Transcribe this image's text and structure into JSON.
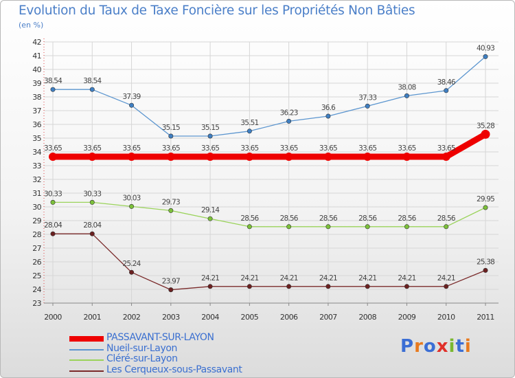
{
  "title": "Evolution du Taux de Taxe Foncière sur les Propriétés Non Bâties",
  "unit": "(en %)",
  "logo": {
    "text": "Proxiti",
    "colors": [
      "#3b6ed4",
      "#e87a1e",
      "#3b6ed4",
      "#e0302a",
      "#7ab830",
      "#3b6ed4",
      "#e87a1e"
    ]
  },
  "chart_data": {
    "type": "line",
    "title": "Evolution du Taux de Taxe Foncière sur les Propriétés Non Bâties",
    "ylabel": "(en %)",
    "xlabel": "",
    "categories": [
      "2000",
      "2001",
      "2002",
      "2003",
      "2004",
      "2005",
      "2006",
      "2007",
      "2008",
      "2009",
      "2010",
      "2011"
    ],
    "ylim": [
      23,
      42
    ],
    "yticks": [
      "23",
      "24",
      "25",
      "26",
      "27",
      "28",
      "29",
      "30",
      "31",
      "32",
      "33",
      "34",
      "35",
      "36",
      "37",
      "38",
      "39",
      "40",
      "41",
      "42"
    ],
    "grid": true,
    "legend_position": "bottom-left",
    "series": [
      {
        "name": "Nueil-sur-Layon",
        "color": "#5b95cf",
        "point_color": "#3f7fc2",
        "values": [
          38.54,
          38.54,
          37.39,
          35.15,
          35.15,
          35.51,
          36.23,
          36.6,
          37.33,
          38.08,
          38.46,
          40.93
        ],
        "labels": [
          "38.54",
          "38.54",
          "37.39",
          "35.15",
          "35.15",
          "35.51",
          "36.23",
          "36.6",
          "37.33",
          "38.08",
          "38.46",
          "40.93"
        ]
      },
      {
        "name": "Cléré-sur-Layon",
        "color": "#9ad35a",
        "point_color": "#7cc13a",
        "values": [
          30.33,
          30.33,
          30.03,
          29.73,
          29.14,
          28.56,
          28.56,
          28.56,
          28.56,
          28.56,
          28.56,
          29.95
        ],
        "labels": [
          "30.33",
          "30.33",
          "30.03",
          "29.73",
          "29.14",
          "28.56",
          "28.56",
          "28.56",
          "28.56",
          "28.56",
          "28.56",
          "29.95"
        ]
      },
      {
        "name": "Les Cerqueux-sous-Passavant",
        "color": "#7a2a2a",
        "point_color": "#6b2020",
        "values": [
          28.04,
          28.04,
          25.24,
          23.97,
          24.21,
          24.21,
          24.21,
          24.21,
          24.21,
          24.21,
          24.21,
          25.38
        ],
        "labels": [
          "28.04",
          "28.04",
          "25.24",
          "23.97",
          "24.21",
          "24.21",
          "24.21",
          "24.21",
          "24.21",
          "24.21",
          "24.21",
          "25.38"
        ]
      },
      {
        "name": "PASSAVANT-SUR-LAYON",
        "color": "#ee0000",
        "point_color": "#ee0000",
        "highlight": true,
        "values": [
          33.65,
          33.65,
          33.65,
          33.65,
          33.65,
          33.65,
          33.65,
          33.65,
          33.65,
          33.65,
          33.65,
          35.28
        ],
        "labels": [
          "33.65",
          "33.65",
          "33.65",
          "33.65",
          "33.65",
          "33.65",
          "33.65",
          "33.65",
          "33.65",
          "33.65",
          "33.65",
          "35.28"
        ]
      }
    ],
    "legend": [
      {
        "name": "PASSAVANT-SUR-LAYON",
        "color": "#ee0000",
        "thick": true
      },
      {
        "name": "Nueil-sur-Layon",
        "color": "#5b95cf",
        "thick": false
      },
      {
        "name": "Cléré-sur-Layon",
        "color": "#9ad35a",
        "thick": false
      },
      {
        "name": "Les Cerqueux-sous-Passavant",
        "color": "#7a2a2a",
        "thick": false
      }
    ]
  }
}
